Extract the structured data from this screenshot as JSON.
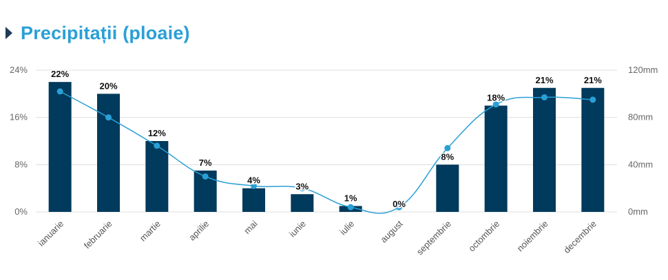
{
  "header": {
    "title": "Precipitații (ploaie)"
  },
  "colors": {
    "bar": "#003a5c",
    "line": "#2a9fd6",
    "title": "#2a9fd6",
    "grid": "#dddddd",
    "caret": "#1f3a57"
  },
  "chart_data": {
    "type": "bar",
    "categories": [
      "ianuarie",
      "februarie",
      "martie",
      "aprilie",
      "mai",
      "iunie",
      "iulie",
      "august",
      "septembrie",
      "octombrie",
      "noiembrie",
      "decembrie"
    ],
    "series": [
      {
        "type": "bar",
        "axis": "left",
        "values": [
          22,
          20,
          12,
          7,
          4,
          3,
          1,
          0,
          8,
          18,
          21,
          21
        ],
        "labels": [
          "22%",
          "20%",
          "12%",
          "7%",
          "4%",
          "3%",
          "1%",
          "0%",
          "8%",
          "18%",
          "21%",
          "21%"
        ]
      },
      {
        "type": "line",
        "axis": "right",
        "values": [
          102,
          80,
          56,
          30,
          22,
          20,
          4,
          4,
          54,
          91,
          97,
          95
        ]
      }
    ],
    "left_axis": {
      "ylim": [
        0,
        24
      ],
      "ticks": [
        "0%",
        "8%",
        "16%",
        "24%"
      ],
      "tick_values": [
        0,
        8,
        16,
        24
      ]
    },
    "right_axis": {
      "ylim": [
        0,
        120
      ],
      "ticks": [
        "0mm",
        "40mm",
        "80mm",
        "120mm"
      ],
      "tick_values": [
        0,
        40,
        80,
        120
      ]
    },
    "grid": true,
    "legend": "none"
  }
}
